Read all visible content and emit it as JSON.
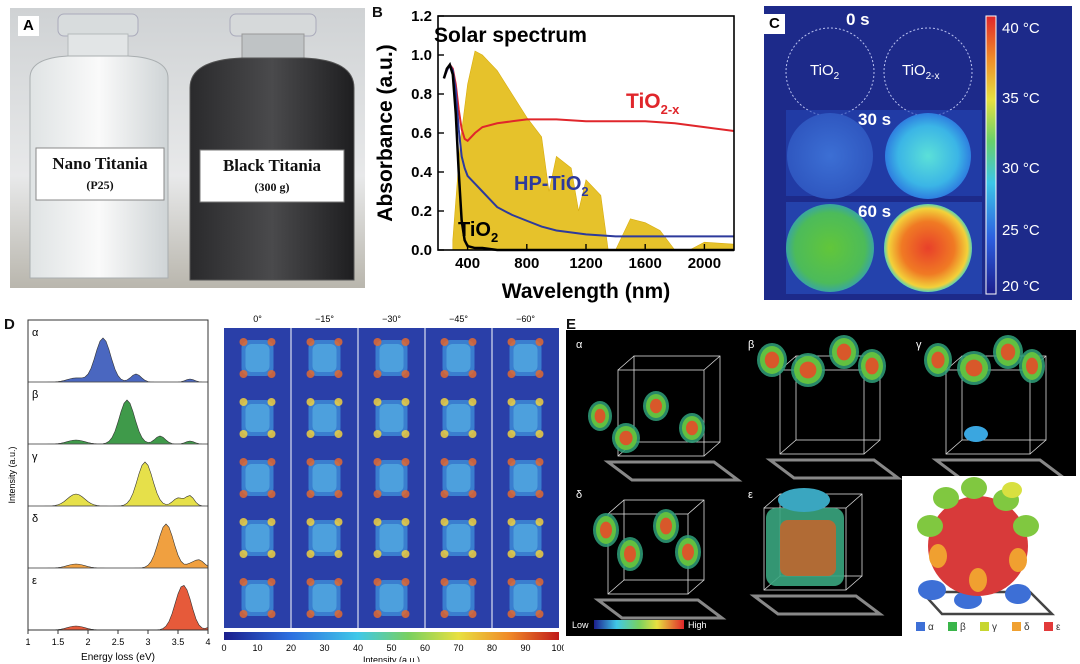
{
  "panels": {
    "a": {
      "letter": "A",
      "left_jar_label": "Nano Titania",
      "left_jar_sub": "(P25)",
      "right_jar_label": "Black Titania",
      "right_jar_sub": "(300 g)"
    },
    "b": {
      "letter": "B"
    },
    "c": {
      "letter": "C",
      "time_labels": [
        "0 s",
        "30 s",
        "60 s"
      ],
      "sample_left": "TiO",
      "sample_left_sub": "2",
      "sample_right": "TiO",
      "sample_right_sub": "2-x",
      "colorbar_labels": [
        "40 °C",
        "35 °C",
        "30 °C",
        "25 °C",
        "20 °C"
      ]
    },
    "d": {
      "letter": "D",
      "ylabel": "Intensity (a.u.)",
      "xlabel": "Energy loss (eV)",
      "xticks": [
        "1",
        "1.5",
        "2",
        "2.5",
        "3",
        "3.5",
        "4"
      ],
      "peak_labels": [
        "α",
        "β",
        "γ",
        "δ",
        "ε"
      ],
      "angle_labels": [
        "0°",
        "−15°",
        "−30°",
        "−45°",
        "−60°"
      ],
      "map_xlabel": "Intensity (a.u.)",
      "map_ticks": [
        "0",
        "10",
        "20",
        "30",
        "40",
        "50",
        "60",
        "70",
        "80",
        "90",
        "100"
      ]
    },
    "e": {
      "letter": "E",
      "mode_labels": [
        "α",
        "β",
        "γ",
        "δ",
        "ε"
      ],
      "scale_low": "Low",
      "scale_high": "High",
      "legend": [
        {
          "label": "α",
          "color": "#3d6fd6"
        },
        {
          "label": "β",
          "color": "#3ab54a"
        },
        {
          "label": "γ",
          "color": "#c7d630"
        },
        {
          "label": "δ",
          "color": "#f0a030"
        },
        {
          "label": "ε",
          "color": "#e23a3a"
        }
      ]
    }
  },
  "chart_data": {
    "type": "line",
    "title": "",
    "xlabel": "Wavelength (nm)",
    "ylabel": "Absorbance (a.u.)",
    "xlim": [
      200,
      2200
    ],
    "ylim": [
      0.0,
      1.2
    ],
    "xticks": [
      400,
      800,
      1200,
      1600,
      2000
    ],
    "yticks": [
      0.0,
      0.2,
      0.4,
      0.6,
      0.8,
      1.0,
      1.2
    ],
    "annotations": {
      "solar": "Solar spectrum",
      "tio2x": "TiO",
      "tio2x_sub": "2-x",
      "hp": "HP-TiO",
      "hp_sub": "2",
      "tio2": "TiO",
      "tio2_sub": "2"
    },
    "series": [
      {
        "name": "TiO2-x",
        "color": "#e0262b",
        "x": [
          240,
          260,
          280,
          300,
          320,
          340,
          360,
          380,
          400,
          450,
          500,
          600,
          700,
          800,
          1000,
          1200,
          1400,
          1600,
          1800,
          2000,
          2200
        ],
        "y": [
          0.88,
          0.92,
          0.95,
          0.93,
          0.85,
          0.72,
          0.62,
          0.57,
          0.56,
          0.6,
          0.63,
          0.65,
          0.66,
          0.67,
          0.67,
          0.66,
          0.66,
          0.66,
          0.65,
          0.63,
          0.61
        ]
      },
      {
        "name": "HP-TiO2",
        "color": "#2d3a9c",
        "x": [
          240,
          260,
          280,
          300,
          320,
          340,
          360,
          380,
          400,
          450,
          500,
          550,
          600,
          700,
          800,
          900,
          1000,
          1200,
          1400,
          1600,
          2000,
          2200
        ],
        "y": [
          0.88,
          0.92,
          0.95,
          0.92,
          0.82,
          0.62,
          0.48,
          0.42,
          0.38,
          0.34,
          0.3,
          0.26,
          0.22,
          0.18,
          0.15,
          0.12,
          0.1,
          0.08,
          0.07,
          0.07,
          0.07,
          0.07
        ]
      },
      {
        "name": "TiO2",
        "color": "#000000",
        "x": [
          240,
          260,
          280,
          300,
          320,
          340,
          360,
          380,
          400,
          450,
          500,
          600,
          800,
          1200,
          1600,
          2000,
          2200
        ],
        "y": [
          0.88,
          0.93,
          0.95,
          0.9,
          0.7,
          0.4,
          0.15,
          0.05,
          0.02,
          0.01,
          0.01,
          0.0,
          0.0,
          0.0,
          0.0,
          0.0,
          0.0
        ]
      },
      {
        "name": "Solar spectrum",
        "color": "#e6c22b",
        "x": [
          300,
          350,
          400,
          450,
          500,
          550,
          600,
          700,
          800,
          900,
          950,
          1000,
          1100,
          1150,
          1200,
          1300,
          1350,
          1400,
          1500,
          1600,
          1700,
          1800,
          1900,
          2000,
          2200
        ],
        "y": [
          0.05,
          0.55,
          0.85,
          1.02,
          1.0,
          0.96,
          0.92,
          0.8,
          0.68,
          0.58,
          0.3,
          0.48,
          0.42,
          0.2,
          0.36,
          0.28,
          0.0,
          0.0,
          0.16,
          0.14,
          0.1,
          0.0,
          0.0,
          0.04,
          0.03
        ]
      }
    ]
  }
}
